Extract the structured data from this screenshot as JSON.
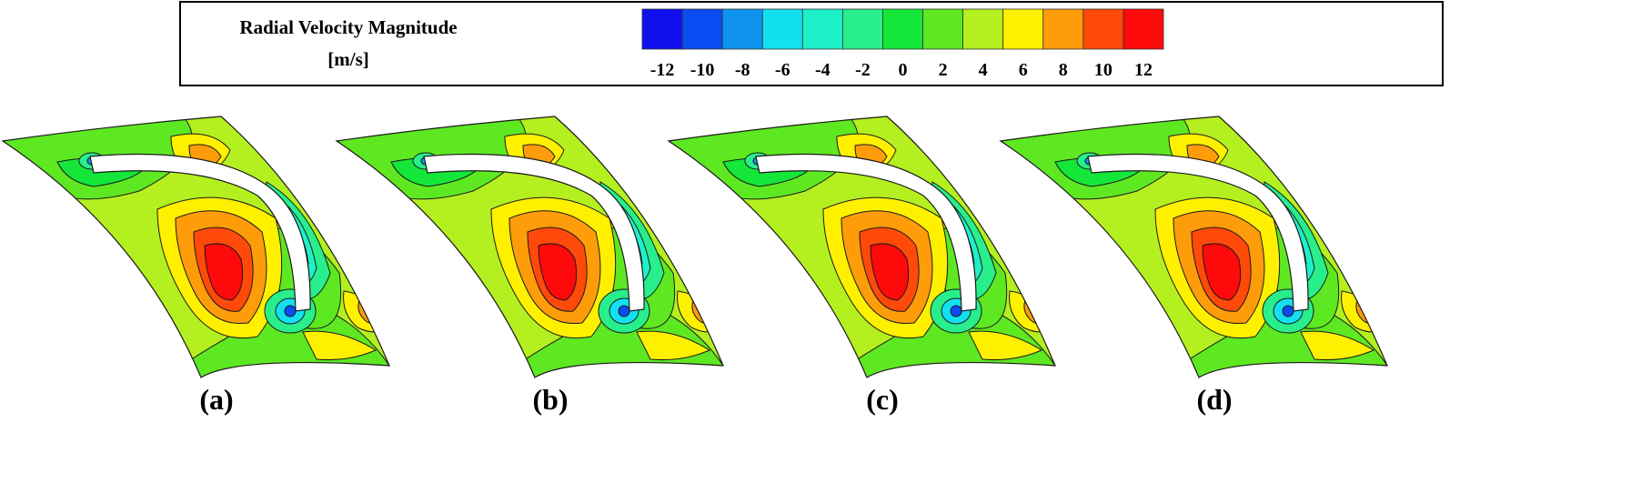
{
  "legend": {
    "title_line1": "Radial Velocity Magnitude",
    "title_line2": "[m/s]",
    "ticks": [
      "-12",
      "-10",
      "-8",
      "-6",
      "-4",
      "-2",
      "0",
      "2",
      "4",
      "6",
      "8",
      "10",
      "12"
    ],
    "colors": [
      "#1010ee",
      "#0a4cf2",
      "#0e94ee",
      "#12e0f0",
      "#1ef0c8",
      "#28ee8c",
      "#14e63a",
      "#5ee822",
      "#b4f020",
      "#fff000",
      "#ff9c0a",
      "#ff4a0a",
      "#ff0a0a"
    ]
  },
  "panels": [
    {
      "label": "(a)"
    },
    {
      "label": "(b)"
    },
    {
      "label": "(c)"
    },
    {
      "label": "(d)"
    }
  ]
}
